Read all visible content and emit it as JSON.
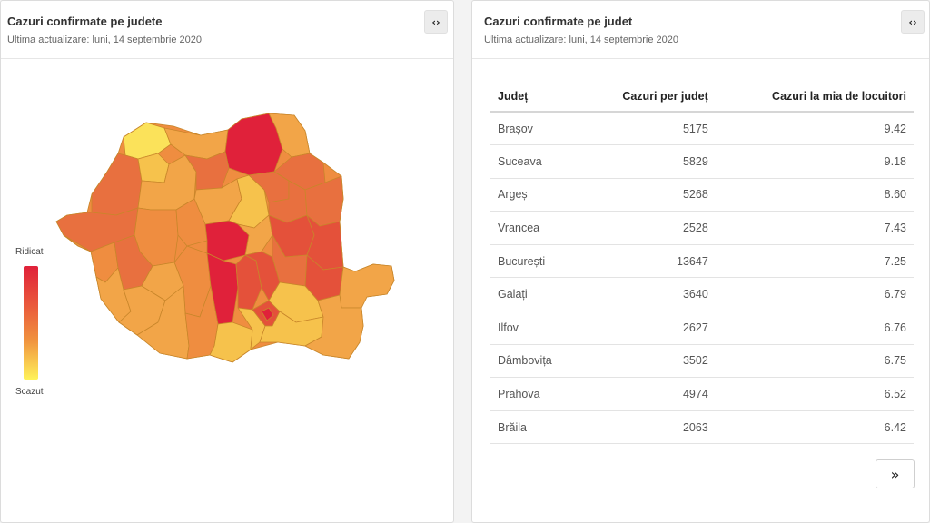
{
  "map_card": {
    "title": "Cazuri confirmate pe judete",
    "subtitle": "Ultima actualizare: luni, 14 septembrie 2020",
    "embed_icon": "code-brackets-icon",
    "embed_label": "‹›",
    "legend": {
      "high_label": "Ridicat",
      "low_label": "Scazut"
    },
    "colors": {
      "very_high": "#e0213a",
      "high": "#e4513a",
      "mid_high": "#e8703f",
      "mid": "#ef8d40",
      "low": "#f2a548",
      "very_low": "#f6c24c",
      "lowest": "#fbe25a",
      "border": "#c8862a"
    }
  },
  "table_card": {
    "title": "Cazuri confirmate pe judet",
    "subtitle": "Ultima actualizare: luni, 14 septembrie 2020",
    "embed_icon": "code-brackets-icon",
    "embed_label": "‹›",
    "columns": [
      "Județ",
      "Cazuri per județ",
      "Cazuri la mia de locuitori"
    ],
    "rows": [
      {
        "county": "Brașov",
        "cases": "5175",
        "per_thousand": "9.42"
      },
      {
        "county": "Suceava",
        "cases": "5829",
        "per_thousand": "9.18"
      },
      {
        "county": "Argeș",
        "cases": "5268",
        "per_thousand": "8.60"
      },
      {
        "county": "Vrancea",
        "cases": "2528",
        "per_thousand": "7.43"
      },
      {
        "county": "București",
        "cases": "13647",
        "per_thousand": "7.25"
      },
      {
        "county": "Galați",
        "cases": "3640",
        "per_thousand": "6.79"
      },
      {
        "county": "Ilfov",
        "cases": "2627",
        "per_thousand": "6.76"
      },
      {
        "county": "Dâmbovița",
        "cases": "3502",
        "per_thousand": "6.75"
      },
      {
        "county": "Prahova",
        "cases": "4974",
        "per_thousand": "6.52"
      },
      {
        "county": "Brăila",
        "cases": "2063",
        "per_thousand": "6.42"
      }
    ],
    "next_page_icon": "double-chevron-right-icon",
    "next_page_label": "»"
  }
}
